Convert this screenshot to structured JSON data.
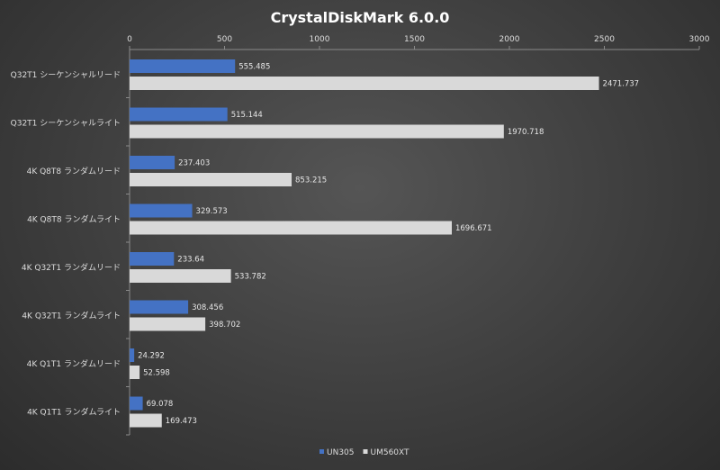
{
  "chart_data": {
    "type": "bar",
    "orientation": "horizontal",
    "title": "CrystalDiskMark  6.0.0",
    "categories": [
      "Q32T1 シーケンシャルリード",
      "Q32T1 シーケンシャルライト",
      "4K Q8T8 ランダムリード",
      "4K Q8T8 ランダムライト",
      "4K Q32T1 ランダムリード",
      "4K Q32T1 ランダムライト",
      "4K Q1T1 ランダムリード",
      "4K Q1T1 ランダムライト"
    ],
    "series": [
      {
        "name": "UN305",
        "values": [
          555.485,
          515.144,
          237.403,
          329.573,
          233.64,
          308.456,
          24.292,
          69.078
        ],
        "labels": [
          "555.485",
          "515.144",
          "237.403",
          "329.573",
          "233.64",
          "308.456",
          "24.292",
          "69.078"
        ]
      },
      {
        "name": "UM560XT",
        "values": [
          2471.737,
          1970.718,
          853.215,
          1696.671,
          533.782,
          398.702,
          52.598,
          169.473
        ],
        "labels": [
          "2471.737",
          "1970.718",
          "853.215",
          "1696.671",
          "533.782",
          "398.702",
          "52.598",
          "169.473"
        ]
      }
    ],
    "xlim": [
      0,
      3000
    ],
    "xticks": [
      "0",
      "500",
      "1000",
      "1500",
      "2000",
      "2500",
      "3000"
    ],
    "xaxis_position": "top",
    "grid": false,
    "legend_position": "bottom",
    "colors": {
      "UN305": "#4472c4",
      "UM560XT": "#d9d9d9"
    }
  }
}
